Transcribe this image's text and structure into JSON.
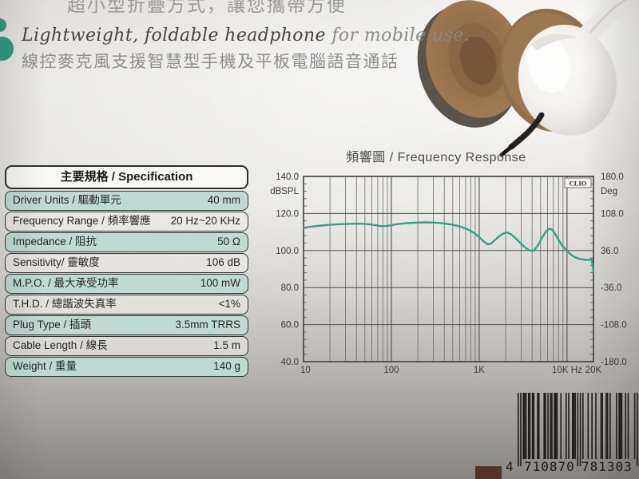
{
  "intro": {
    "line1": "超小型折疊方式，讓您攜帶方便",
    "line2_en_dark": "Lightweight, foldable headphone ",
    "line2_en_light": "for mobile use.",
    "line3": "線控麥克風支援智慧型手機及平板電腦語音通話"
  },
  "spec_table": {
    "title": "主要規格 / Specification",
    "rows": [
      {
        "label": "Driver Units / 驅動單元",
        "value": "40 mm"
      },
      {
        "label": "Frequency Range / 頻率響應",
        "value": "20 Hz~20 KHz"
      },
      {
        "label": "Impedance / 阻抗",
        "value": "50 Ω"
      },
      {
        "label": "Sensitivity/ 靈敏度",
        "value": "106 dB"
      },
      {
        "label": "M.P.O. / 最大承受功率",
        "value": "100 mW"
      },
      {
        "label": "T.H.D. / 總諧波失真率",
        "value": "<1%"
      },
      {
        "label": "Plug Type / 插頭",
        "value": "3.5mm TRRS"
      },
      {
        "label": "Cable Length / 線長",
        "value": "1.5 m"
      },
      {
        "label": "Weight / 重量",
        "value": "140 g"
      }
    ]
  },
  "chart_data": {
    "type": "line",
    "title": "頻響圖 / Frequency Response",
    "watermark": "CLIO",
    "x_scale": "log",
    "xlim": [
      10,
      20000
    ],
    "ylim_left": [
      40,
      140
    ],
    "ylim_right": [
      -180,
      180
    ],
    "ylabel_left": "dBSPL",
    "ylabel_right": "Deg",
    "y_ticks_left": [
      "140.0",
      "120.0",
      "100.0",
      "80.0",
      "60.0",
      "40.0"
    ],
    "y_ticks_right": [
      "180.0",
      "108.0",
      "36.0",
      "-36.0",
      "-108.0",
      "-180.0"
    ],
    "x_ticks": [
      {
        "value": 10,
        "label": "10"
      },
      {
        "value": 100,
        "label": "100"
      },
      {
        "value": 1000,
        "label": "1K"
      },
      {
        "value": 10000,
        "label": "10K Hz"
      },
      {
        "value": 20000,
        "label": "20K"
      }
    ],
    "grid": true,
    "legend_position": "none",
    "series": [
      {
        "name": "SPL",
        "color": "#2ba28b",
        "points": [
          [
            10,
            112.3
          ],
          [
            13,
            113.0
          ],
          [
            16,
            113.5
          ],
          [
            20,
            113.9
          ],
          [
            25,
            114.2
          ],
          [
            32,
            114.4
          ],
          [
            40,
            114.5
          ],
          [
            50,
            114.4
          ],
          [
            60,
            114.0
          ],
          [
            70,
            113.4
          ],
          [
            80,
            113.1
          ],
          [
            90,
            113.3
          ],
          [
            100,
            113.7
          ],
          [
            120,
            114.3
          ],
          [
            150,
            114.8
          ],
          [
            200,
            115.1
          ],
          [
            250,
            115.2
          ],
          [
            300,
            115.1
          ],
          [
            350,
            114.9
          ],
          [
            400,
            114.6
          ],
          [
            500,
            113.9
          ],
          [
            600,
            113.0
          ],
          [
            700,
            111.9
          ],
          [
            800,
            110.6
          ],
          [
            900,
            109.0
          ],
          [
            1000,
            107.3
          ],
          [
            1100,
            105.3
          ],
          [
            1250,
            103.3
          ],
          [
            1350,
            103.6
          ],
          [
            1500,
            105.5
          ],
          [
            1700,
            107.8
          ],
          [
            1900,
            109.3
          ],
          [
            2100,
            109.7
          ],
          [
            2300,
            108.8
          ],
          [
            2600,
            106.6
          ],
          [
            3000,
            103.6
          ],
          [
            3400,
            101.2
          ],
          [
            3800,
            99.9
          ],
          [
            4200,
            100.0
          ],
          [
            4700,
            103.0
          ],
          [
            5200,
            107.0
          ],
          [
            5800,
            110.5
          ],
          [
            6300,
            111.8
          ],
          [
            6800,
            111.2
          ],
          [
            7400,
            108.6
          ],
          [
            8000,
            105.8
          ],
          [
            8700,
            103.0
          ],
          [
            9500,
            100.9
          ],
          [
            10500,
            98.8
          ],
          [
            11500,
            97.2
          ],
          [
            12500,
            96.2
          ],
          [
            13500,
            95.7
          ],
          [
            15000,
            95.2
          ],
          [
            16500,
            94.9
          ],
          [
            18000,
            95.0
          ],
          [
            19000,
            95.4
          ],
          [
            19400,
            93.5
          ],
          [
            20000,
            88.3
          ]
        ]
      }
    ]
  },
  "barcode": {
    "digits": "4710870781303",
    "display": "4 710870 781303"
  },
  "colors": {
    "accent_teal": "#2d9a81",
    "table_row_teal": "#bedad3",
    "curve": "#2ba28b",
    "grid_line": "#6b6b6b",
    "frame": "#3e3e3c",
    "swatch_brown": "#54322a"
  }
}
